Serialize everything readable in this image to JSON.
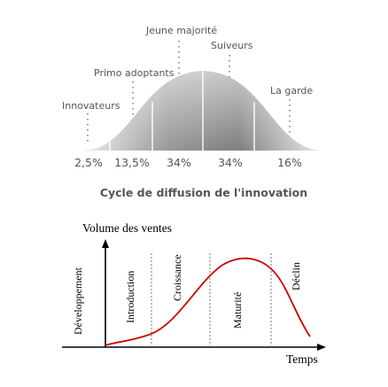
{
  "diffusion": {
    "segments": [
      {
        "label": "Innovateurs",
        "share": "2,5%"
      },
      {
        "label": "Primo adoptants",
        "share": "13,5%"
      },
      {
        "label": "Jeune majorité",
        "share": "34%"
      },
      {
        "label": "Suiveurs",
        "share": "34%"
      },
      {
        "label": "La garde",
        "share": "16%"
      }
    ],
    "caption": "Cycle de diffusion de l'innovation",
    "colors": {
      "curve_fill_light": "#ececec",
      "curve_fill_dark": "#a8a8a8",
      "text": "#555555"
    }
  },
  "lifecycle": {
    "y_axis_label": "Volume des ventes",
    "x_axis_label": "Temps",
    "phases": [
      "Développement",
      "Introduction",
      "Croissance",
      "Maturité",
      "Déclin"
    ],
    "colors": {
      "curve": "#cc0000",
      "axis": "#000000"
    }
  }
}
